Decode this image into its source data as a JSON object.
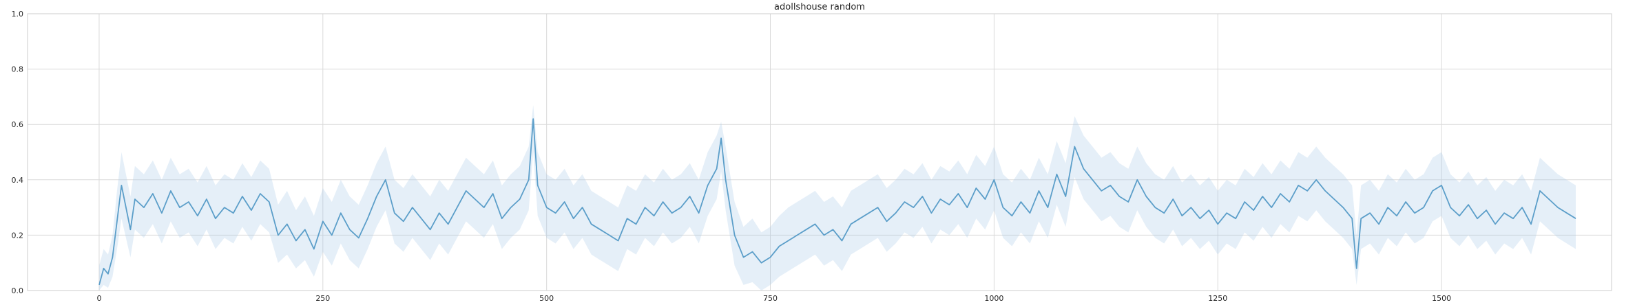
{
  "chart_data": {
    "type": "line",
    "title": "adollshouse random",
    "xlabel": "",
    "ylabel": "",
    "xlim": [
      -80,
      1690
    ],
    "ylim": [
      0,
      1
    ],
    "x_ticks": [
      0,
      250,
      500,
      750,
      1000,
      1250,
      1500
    ],
    "x_tick_labels": [
      "0",
      "250",
      "500",
      "750",
      "1000",
      "1250",
      "1500"
    ],
    "y_ticks": [
      0,
      0.2,
      0.4,
      0.6,
      0.8,
      1.0
    ],
    "y_tick_labels": [
      "0.0",
      "0.2",
      "0.4",
      "0.6",
      "0.8",
      "1.0"
    ],
    "grid": true,
    "legend": "none",
    "line_color": "#5b9ec9",
    "band_color": "#a9cbe8",
    "series": [
      {
        "x": [
          0,
          5,
          10,
          15,
          20,
          25,
          30,
          35,
          40,
          50,
          60,
          70,
          80,
          90,
          100,
          110,
          120,
          130,
          140,
          150,
          160,
          170,
          180,
          190,
          200,
          210,
          220,
          230,
          240,
          250,
          260,
          270,
          280,
          290,
          300,
          310,
          320,
          330,
          340,
          350,
          360,
          370,
          380,
          390,
          400,
          410,
          420,
          430,
          440,
          450,
          460,
          470,
          480,
          485,
          490,
          500,
          510,
          520,
          530,
          540,
          550,
          560,
          570,
          580,
          590,
          600,
          610,
          620,
          630,
          640,
          650,
          660,
          670,
          680,
          690,
          695,
          700,
          710,
          720,
          730,
          740,
          750,
          760,
          770,
          780,
          790,
          800,
          810,
          820,
          830,
          840,
          850,
          860,
          870,
          880,
          890,
          900,
          910,
          920,
          930,
          940,
          950,
          960,
          970,
          980,
          990,
          1000,
          1010,
          1020,
          1030,
          1040,
          1050,
          1060,
          1070,
          1080,
          1090,
          1100,
          1110,
          1120,
          1130,
          1140,
          1150,
          1160,
          1170,
          1180,
          1190,
          1200,
          1210,
          1220,
          1230,
          1240,
          1250,
          1260,
          1270,
          1280,
          1290,
          1300,
          1310,
          1320,
          1330,
          1340,
          1350,
          1360,
          1370,
          1380,
          1390,
          1400,
          1405,
          1410,
          1420,
          1430,
          1440,
          1450,
          1460,
          1470,
          1480,
          1490,
          1500,
          1510,
          1520,
          1530,
          1540,
          1550,
          1560,
          1570,
          1580,
          1590,
          1600,
          1610,
          1620,
          1630,
          1640,
          1650
        ],
        "values": [
          0.02,
          0.08,
          0.06,
          0.12,
          0.25,
          0.38,
          0.3,
          0.22,
          0.33,
          0.3,
          0.35,
          0.28,
          0.36,
          0.3,
          0.32,
          0.27,
          0.33,
          0.26,
          0.3,
          0.28,
          0.34,
          0.29,
          0.35,
          0.32,
          0.2,
          0.24,
          0.18,
          0.22,
          0.15,
          0.25,
          0.2,
          0.28,
          0.22,
          0.19,
          0.26,
          0.34,
          0.4,
          0.28,
          0.25,
          0.3,
          0.26,
          0.22,
          0.28,
          0.24,
          0.3,
          0.36,
          0.33,
          0.3,
          0.35,
          0.26,
          0.3,
          0.33,
          0.4,
          0.62,
          0.38,
          0.3,
          0.28,
          0.32,
          0.26,
          0.3,
          0.24,
          0.22,
          0.2,
          0.18,
          0.26,
          0.24,
          0.3,
          0.27,
          0.32,
          0.28,
          0.3,
          0.34,
          0.28,
          0.38,
          0.44,
          0.55,
          0.4,
          0.2,
          0.12,
          0.14,
          0.1,
          0.12,
          0.16,
          0.18,
          0.2,
          0.22,
          0.24,
          0.2,
          0.22,
          0.18,
          0.24,
          0.26,
          0.28,
          0.3,
          0.25,
          0.28,
          0.32,
          0.3,
          0.34,
          0.28,
          0.33,
          0.31,
          0.35,
          0.3,
          0.37,
          0.33,
          0.4,
          0.3,
          0.27,
          0.32,
          0.28,
          0.36,
          0.3,
          0.42,
          0.34,
          0.52,
          0.44,
          0.4,
          0.36,
          0.38,
          0.34,
          0.32,
          0.4,
          0.34,
          0.3,
          0.28,
          0.33,
          0.27,
          0.3,
          0.26,
          0.29,
          0.24,
          0.28,
          0.26,
          0.32,
          0.29,
          0.34,
          0.3,
          0.35,
          0.32,
          0.38,
          0.36,
          0.4,
          0.36,
          0.33,
          0.3,
          0.26,
          0.08,
          0.26,
          0.28,
          0.24,
          0.3,
          0.27,
          0.32,
          0.28,
          0.3,
          0.36,
          0.38,
          0.3,
          0.27,
          0.31,
          0.26,
          0.29,
          0.24,
          0.28,
          0.26,
          0.3,
          0.24,
          0.36,
          0.33,
          0.3,
          0.28,
          0.26
        ],
        "lower": [
          0.0,
          0.02,
          0.01,
          0.05,
          0.15,
          0.26,
          0.19,
          0.12,
          0.22,
          0.19,
          0.24,
          0.17,
          0.25,
          0.19,
          0.21,
          0.16,
          0.22,
          0.15,
          0.19,
          0.17,
          0.23,
          0.18,
          0.24,
          0.21,
          0.1,
          0.13,
          0.08,
          0.11,
          0.05,
          0.14,
          0.09,
          0.17,
          0.11,
          0.08,
          0.15,
          0.23,
          0.29,
          0.17,
          0.14,
          0.19,
          0.15,
          0.11,
          0.17,
          0.13,
          0.19,
          0.25,
          0.22,
          0.19,
          0.24,
          0.15,
          0.19,
          0.22,
          0.29,
          0.5,
          0.27,
          0.19,
          0.17,
          0.21,
          0.15,
          0.19,
          0.13,
          0.11,
          0.09,
          0.07,
          0.15,
          0.13,
          0.19,
          0.16,
          0.21,
          0.17,
          0.19,
          0.23,
          0.17,
          0.27,
          0.33,
          0.43,
          0.29,
          0.09,
          0.02,
          0.03,
          0.0,
          0.02,
          0.05,
          0.07,
          0.09,
          0.11,
          0.13,
          0.09,
          0.11,
          0.07,
          0.13,
          0.15,
          0.17,
          0.19,
          0.14,
          0.17,
          0.21,
          0.19,
          0.23,
          0.17,
          0.22,
          0.2,
          0.24,
          0.19,
          0.26,
          0.22,
          0.29,
          0.19,
          0.16,
          0.21,
          0.17,
          0.25,
          0.19,
          0.31,
          0.23,
          0.41,
          0.33,
          0.29,
          0.25,
          0.27,
          0.23,
          0.21,
          0.29,
          0.23,
          0.19,
          0.17,
          0.22,
          0.16,
          0.19,
          0.15,
          0.18,
          0.13,
          0.17,
          0.15,
          0.21,
          0.18,
          0.23,
          0.19,
          0.24,
          0.21,
          0.27,
          0.25,
          0.29,
          0.25,
          0.22,
          0.19,
          0.15,
          0.02,
          0.15,
          0.17,
          0.13,
          0.19,
          0.16,
          0.21,
          0.17,
          0.19,
          0.25,
          0.27,
          0.19,
          0.16,
          0.2,
          0.15,
          0.18,
          0.13,
          0.17,
          0.15,
          0.19,
          0.13,
          0.25,
          0.22,
          0.19,
          0.17,
          0.15
        ],
        "upper": [
          0.09,
          0.15,
          0.13,
          0.2,
          0.36,
          0.5,
          0.42,
          0.34,
          0.45,
          0.42,
          0.47,
          0.4,
          0.48,
          0.42,
          0.44,
          0.39,
          0.45,
          0.38,
          0.42,
          0.4,
          0.46,
          0.41,
          0.47,
          0.44,
          0.31,
          0.36,
          0.29,
          0.34,
          0.27,
          0.37,
          0.32,
          0.4,
          0.34,
          0.31,
          0.38,
          0.46,
          0.52,
          0.4,
          0.37,
          0.42,
          0.38,
          0.34,
          0.4,
          0.36,
          0.42,
          0.48,
          0.45,
          0.42,
          0.47,
          0.38,
          0.42,
          0.45,
          0.52,
          0.67,
          0.5,
          0.42,
          0.4,
          0.44,
          0.38,
          0.42,
          0.36,
          0.34,
          0.32,
          0.3,
          0.38,
          0.36,
          0.42,
          0.39,
          0.44,
          0.4,
          0.42,
          0.46,
          0.4,
          0.5,
          0.56,
          0.61,
          0.52,
          0.32,
          0.23,
          0.26,
          0.21,
          0.23,
          0.27,
          0.3,
          0.32,
          0.34,
          0.36,
          0.32,
          0.34,
          0.3,
          0.36,
          0.38,
          0.4,
          0.42,
          0.37,
          0.4,
          0.44,
          0.42,
          0.46,
          0.4,
          0.45,
          0.43,
          0.47,
          0.42,
          0.49,
          0.45,
          0.52,
          0.42,
          0.39,
          0.44,
          0.4,
          0.48,
          0.42,
          0.54,
          0.46,
          0.63,
          0.56,
          0.52,
          0.48,
          0.5,
          0.46,
          0.44,
          0.52,
          0.46,
          0.42,
          0.4,
          0.45,
          0.39,
          0.42,
          0.38,
          0.41,
          0.36,
          0.4,
          0.38,
          0.44,
          0.41,
          0.46,
          0.42,
          0.47,
          0.44,
          0.5,
          0.48,
          0.52,
          0.48,
          0.45,
          0.42,
          0.38,
          0.2,
          0.38,
          0.4,
          0.36,
          0.42,
          0.39,
          0.44,
          0.4,
          0.42,
          0.48,
          0.5,
          0.42,
          0.39,
          0.43,
          0.38,
          0.41,
          0.36,
          0.4,
          0.38,
          0.42,
          0.36,
          0.48,
          0.45,
          0.42,
          0.4,
          0.38
        ]
      }
    ]
  }
}
